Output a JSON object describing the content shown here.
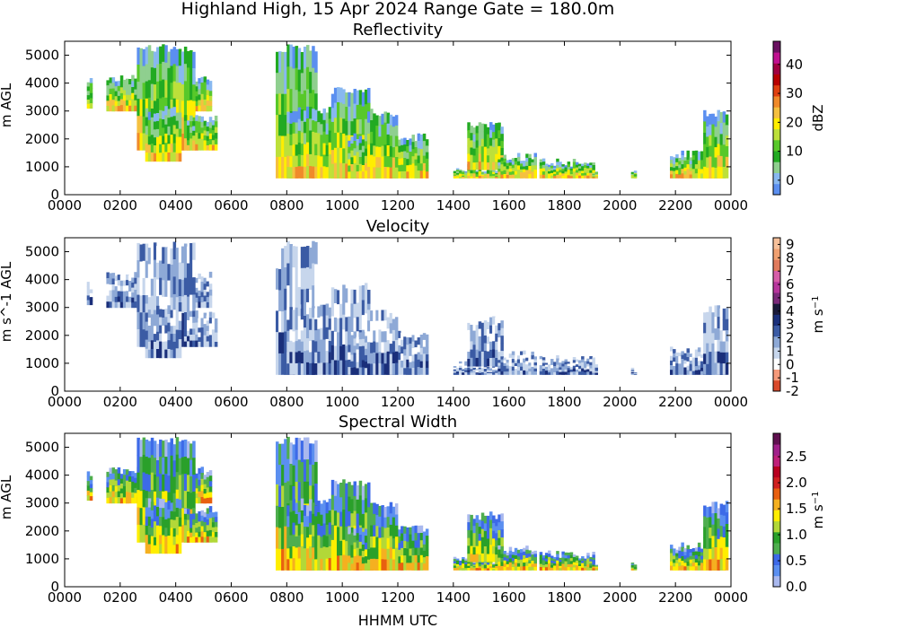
{
  "title": "Highland High, 15 Apr 2024 Range Gate = 180.0m",
  "x_axis_label": "HHMM UTC",
  "chart_data": [
    {
      "type": "heatmap",
      "title": "Reflectivity",
      "ylabel": "m AGL",
      "xlabel": "",
      "x_ticks": [
        "0000",
        "0200",
        "0400",
        "0600",
        "0800",
        "1000",
        "1200",
        "1400",
        "1600",
        "1800",
        "2000",
        "2200",
        "0000"
      ],
      "y_ticks": [
        "0",
        "1000",
        "2000",
        "3000",
        "4000",
        "5000"
      ],
      "ylim": [
        0,
        5500
      ],
      "colorbar": {
        "label": "dBZ",
        "ticks": [
          "0",
          "10",
          "20",
          "30",
          "40"
        ],
        "tick_values": [
          0,
          10,
          20,
          30,
          40
        ],
        "range": [
          -5,
          48
        ],
        "colors": [
          "#5b8ff0",
          "#88b8f0",
          "#8fcf8f",
          "#22aa22",
          "#58c82a",
          "#bde03a",
          "#ffee00",
          "#f5c040",
          "#f08a2a",
          "#e04010",
          "#b80000",
          "#a00040",
          "#c01090",
          "#6a1060"
        ]
      }
    },
    {
      "type": "heatmap",
      "title": "Velocity",
      "ylabel": "m s^-1 AGL",
      "xlabel": "",
      "x_ticks": [
        "0000",
        "0200",
        "0400",
        "0600",
        "0800",
        "1000",
        "1200",
        "1400",
        "1600",
        "1800",
        "2000",
        "2200",
        "0000"
      ],
      "y_ticks": [
        "0",
        "1000",
        "2000",
        "3000",
        "4000",
        "5000"
      ],
      "ylim": [
        0,
        5500
      ],
      "colorbar": {
        "label": "m s",
        "label_exp": "−1",
        "ticks": [
          "-2",
          "-1",
          "0",
          "1",
          "2",
          "3",
          "4",
          "5",
          "6",
          "7",
          "8",
          "9"
        ],
        "tick_values": [
          -2,
          -1,
          0,
          1,
          2,
          3,
          4,
          5,
          6,
          7,
          8,
          9
        ],
        "range": [
          -2,
          9.5
        ],
        "colors": [
          "#d94a2b",
          "#f59a7a",
          "#ffffff",
          "#c7d6ec",
          "#8ea9d6",
          "#3b5ba4",
          "#1a2f7a",
          "#1a1a3a",
          "#7b2a7a",
          "#b7369c",
          "#d65ea8",
          "#e07a5c",
          "#f0a070",
          "#f6c09a"
        ]
      }
    },
    {
      "type": "heatmap",
      "title": "Spectral Width",
      "ylabel": "m AGL",
      "xlabel": "HHMM UTC",
      "x_ticks": [
        "0000",
        "0200",
        "0400",
        "0600",
        "0800",
        "1000",
        "1200",
        "1400",
        "1600",
        "1800",
        "2000",
        "2200",
        "0000"
      ],
      "y_ticks": [
        "0",
        "1000",
        "2000",
        "3000",
        "4000",
        "5000"
      ],
      "ylim": [
        0,
        5500
      ],
      "colorbar": {
        "label": "m s",
        "label_exp": "−1",
        "ticks": [
          "0.0",
          "0.5",
          "1.0",
          "1.5",
          "2.0",
          "2.5"
        ],
        "tick_values": [
          0.0,
          0.5,
          1.0,
          1.5,
          2.0,
          2.5
        ],
        "range": [
          0.0,
          2.95
        ],
        "colors": [
          "#a9b8ee",
          "#5b8ff0",
          "#3d6ae8",
          "#4fae4f",
          "#2aa02a",
          "#b2d838",
          "#ffee00",
          "#f5b020",
          "#e86010",
          "#d02020",
          "#b80020",
          "#c0207a",
          "#a0208a",
          "#601050"
        ]
      }
    }
  ]
}
